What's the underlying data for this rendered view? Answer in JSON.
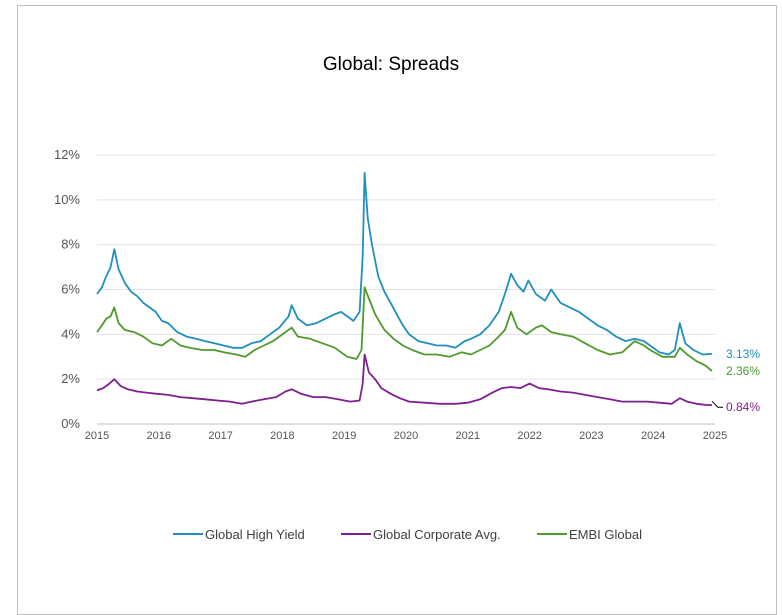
{
  "chart_data": {
    "type": "line",
    "title": "Global: Spreads",
    "xlabel": "",
    "ylabel": "",
    "x_range": [
      2015,
      2025
    ],
    "x_ticks": [
      "2015",
      "2016",
      "2017",
      "2018",
      "2019",
      "2020",
      "2021",
      "2022",
      "2023",
      "2024",
      "2025"
    ],
    "y_ticks": [
      "0%",
      "2%",
      "4%",
      "6%",
      "8%",
      "10%",
      "12%"
    ],
    "ylim": [
      0,
      12
    ],
    "grid": "horizontal",
    "legend_position": "bottom",
    "series": [
      {
        "name": "Global High Yield",
        "color": "#1f8fbf",
        "end_label": "3.13%",
        "points": [
          [
            2015.0,
            5.8
          ],
          [
            2015.08,
            6.1
          ],
          [
            2015.15,
            6.6
          ],
          [
            2015.22,
            7.0
          ],
          [
            2015.28,
            7.8
          ],
          [
            2015.35,
            6.9
          ],
          [
            2015.45,
            6.3
          ],
          [
            2015.55,
            5.9
          ],
          [
            2015.65,
            5.7
          ],
          [
            2015.75,
            5.4
          ],
          [
            2015.85,
            5.2
          ],
          [
            2015.95,
            5.0
          ],
          [
            2016.05,
            4.6
          ],
          [
            2016.15,
            4.5
          ],
          [
            2016.3,
            4.1
          ],
          [
            2016.45,
            3.9
          ],
          [
            2016.6,
            3.8
          ],
          [
            2016.75,
            3.7
          ],
          [
            2016.9,
            3.6
          ],
          [
            2017.05,
            3.5
          ],
          [
            2017.2,
            3.4
          ],
          [
            2017.35,
            3.4
          ],
          [
            2017.5,
            3.6
          ],
          [
            2017.65,
            3.7
          ],
          [
            2017.8,
            4.0
          ],
          [
            2017.95,
            4.3
          ],
          [
            2018.1,
            4.8
          ],
          [
            2018.15,
            5.3
          ],
          [
            2018.25,
            4.7
          ],
          [
            2018.4,
            4.4
          ],
          [
            2018.55,
            4.5
          ],
          [
            2018.7,
            4.7
          ],
          [
            2018.85,
            4.9
          ],
          [
            2018.95,
            5.0
          ],
          [
            2019.05,
            4.8
          ],
          [
            2019.15,
            4.6
          ],
          [
            2019.25,
            5.0
          ],
          [
            2019.3,
            7.5
          ],
          [
            2019.33,
            11.2
          ],
          [
            2019.38,
            9.2
          ],
          [
            2019.45,
            8.0
          ],
          [
            2019.55,
            6.6
          ],
          [
            2019.65,
            5.9
          ],
          [
            2019.75,
            5.4
          ],
          [
            2019.85,
            4.9
          ],
          [
            2019.95,
            4.4
          ],
          [
            2020.05,
            4.0
          ],
          [
            2020.2,
            3.7
          ],
          [
            2020.35,
            3.6
          ],
          [
            2020.5,
            3.5
          ],
          [
            2020.65,
            3.5
          ],
          [
            2020.8,
            3.4
          ],
          [
            2020.95,
            3.7
          ],
          [
            2021.05,
            3.8
          ],
          [
            2021.2,
            4.0
          ],
          [
            2021.35,
            4.4
          ],
          [
            2021.5,
            5.0
          ],
          [
            2021.6,
            5.8
          ],
          [
            2021.7,
            6.7
          ],
          [
            2021.8,
            6.2
          ],
          [
            2021.9,
            5.9
          ],
          [
            2021.98,
            6.4
          ],
          [
            2022.1,
            5.8
          ],
          [
            2022.25,
            5.5
          ],
          [
            2022.35,
            6.0
          ],
          [
            2022.5,
            5.4
          ],
          [
            2022.65,
            5.2
          ],
          [
            2022.8,
            5.0
          ],
          [
            2022.95,
            4.7
          ],
          [
            2023.1,
            4.4
          ],
          [
            2023.25,
            4.2
          ],
          [
            2023.4,
            3.9
          ],
          [
            2023.55,
            3.7
          ],
          [
            2023.7,
            3.8
          ],
          [
            2023.85,
            3.7
          ],
          [
            2023.95,
            3.5
          ],
          [
            2024.1,
            3.2
          ],
          [
            2024.25,
            3.1
          ],
          [
            2024.35,
            3.3
          ],
          [
            2024.43,
            4.5
          ],
          [
            2024.52,
            3.6
          ],
          [
            2024.65,
            3.3
          ],
          [
            2024.8,
            3.1
          ],
          [
            2024.95,
            3.13
          ]
        ]
      },
      {
        "name": "Global Corporate Avg.",
        "color": "#7e1f8e",
        "end_label": "0.84%",
        "points": [
          [
            2015.0,
            1.5
          ],
          [
            2015.1,
            1.6
          ],
          [
            2015.2,
            1.8
          ],
          [
            2015.28,
            2.0
          ],
          [
            2015.38,
            1.7
          ],
          [
            2015.5,
            1.55
          ],
          [
            2015.65,
            1.45
          ],
          [
            2015.8,
            1.4
          ],
          [
            2015.95,
            1.35
          ],
          [
            2016.15,
            1.3
          ],
          [
            2016.35,
            1.2
          ],
          [
            2016.55,
            1.15
          ],
          [
            2016.75,
            1.1
          ],
          [
            2016.95,
            1.05
          ],
          [
            2017.15,
            1.0
          ],
          [
            2017.35,
            0.9
          ],
          [
            2017.5,
            1.0
          ],
          [
            2017.7,
            1.1
          ],
          [
            2017.9,
            1.2
          ],
          [
            2018.05,
            1.45
          ],
          [
            2018.15,
            1.55
          ],
          [
            2018.3,
            1.35
          ],
          [
            2018.5,
            1.2
          ],
          [
            2018.7,
            1.2
          ],
          [
            2018.9,
            1.1
          ],
          [
            2019.1,
            1.0
          ],
          [
            2019.25,
            1.05
          ],
          [
            2019.3,
            1.8
          ],
          [
            2019.33,
            3.1
          ],
          [
            2019.4,
            2.3
          ],
          [
            2019.5,
            2.0
          ],
          [
            2019.6,
            1.6
          ],
          [
            2019.75,
            1.35
          ],
          [
            2019.9,
            1.15
          ],
          [
            2020.05,
            1.0
          ],
          [
            2020.3,
            0.95
          ],
          [
            2020.55,
            0.9
          ],
          [
            2020.8,
            0.9
          ],
          [
            2021.0,
            0.95
          ],
          [
            2021.2,
            1.1
          ],
          [
            2021.4,
            1.4
          ],
          [
            2021.55,
            1.6
          ],
          [
            2021.7,
            1.65
          ],
          [
            2021.85,
            1.6
          ],
          [
            2022.0,
            1.8
          ],
          [
            2022.15,
            1.6
          ],
          [
            2022.3,
            1.55
          ],
          [
            2022.5,
            1.45
          ],
          [
            2022.7,
            1.4
          ],
          [
            2022.9,
            1.3
          ],
          [
            2023.1,
            1.2
          ],
          [
            2023.3,
            1.1
          ],
          [
            2023.5,
            1.0
          ],
          [
            2023.7,
            1.0
          ],
          [
            2023.9,
            1.0
          ],
          [
            2024.1,
            0.95
          ],
          [
            2024.3,
            0.9
          ],
          [
            2024.43,
            1.15
          ],
          [
            2024.55,
            1.0
          ],
          [
            2024.7,
            0.9
          ],
          [
            2024.85,
            0.85
          ],
          [
            2024.95,
            0.84
          ]
        ]
      },
      {
        "name": "EMBI Global",
        "color": "#4e9a2e",
        "end_label": "2.36%",
        "points": [
          [
            2015.0,
            4.1
          ],
          [
            2015.08,
            4.4
          ],
          [
            2015.15,
            4.7
          ],
          [
            2015.22,
            4.8
          ],
          [
            2015.28,
            5.2
          ],
          [
            2015.35,
            4.5
          ],
          [
            2015.45,
            4.2
          ],
          [
            2015.6,
            4.1
          ],
          [
            2015.75,
            3.9
          ],
          [
            2015.9,
            3.6
          ],
          [
            2016.05,
            3.5
          ],
          [
            2016.2,
            3.8
          ],
          [
            2016.35,
            3.5
          ],
          [
            2016.5,
            3.4
          ],
          [
            2016.7,
            3.3
          ],
          [
            2016.9,
            3.3
          ],
          [
            2017.05,
            3.2
          ],
          [
            2017.25,
            3.1
          ],
          [
            2017.4,
            3.0
          ],
          [
            2017.55,
            3.3
          ],
          [
            2017.7,
            3.5
          ],
          [
            2017.85,
            3.7
          ],
          [
            2017.95,
            3.9
          ],
          [
            2018.05,
            4.1
          ],
          [
            2018.15,
            4.3
          ],
          [
            2018.25,
            3.9
          ],
          [
            2018.45,
            3.8
          ],
          [
            2018.65,
            3.6
          ],
          [
            2018.85,
            3.4
          ],
          [
            2018.95,
            3.2
          ],
          [
            2019.05,
            3.0
          ],
          [
            2019.2,
            2.9
          ],
          [
            2019.28,
            3.3
          ],
          [
            2019.33,
            6.1
          ],
          [
            2019.4,
            5.6
          ],
          [
            2019.5,
            4.9
          ],
          [
            2019.65,
            4.2
          ],
          [
            2019.8,
            3.8
          ],
          [
            2019.95,
            3.5
          ],
          [
            2020.1,
            3.3
          ],
          [
            2020.3,
            3.1
          ],
          [
            2020.5,
            3.1
          ],
          [
            2020.7,
            3.0
          ],
          [
            2020.9,
            3.2
          ],
          [
            2021.05,
            3.1
          ],
          [
            2021.2,
            3.3
          ],
          [
            2021.35,
            3.5
          ],
          [
            2021.5,
            3.9
          ],
          [
            2021.6,
            4.2
          ],
          [
            2021.7,
            5.0
          ],
          [
            2021.8,
            4.3
          ],
          [
            2021.95,
            4.0
          ],
          [
            2022.1,
            4.3
          ],
          [
            2022.2,
            4.4
          ],
          [
            2022.35,
            4.1
          ],
          [
            2022.5,
            4.0
          ],
          [
            2022.7,
            3.9
          ],
          [
            2022.9,
            3.6
          ],
          [
            2023.1,
            3.3
          ],
          [
            2023.3,
            3.1
          ],
          [
            2023.5,
            3.2
          ],
          [
            2023.7,
            3.7
          ],
          [
            2023.85,
            3.5
          ],
          [
            2023.95,
            3.3
          ],
          [
            2024.15,
            3.0
          ],
          [
            2024.35,
            3.0
          ],
          [
            2024.43,
            3.4
          ],
          [
            2024.55,
            3.1
          ],
          [
            2024.7,
            2.8
          ],
          [
            2024.85,
            2.6
          ],
          [
            2024.95,
            2.36
          ]
        ]
      }
    ]
  }
}
